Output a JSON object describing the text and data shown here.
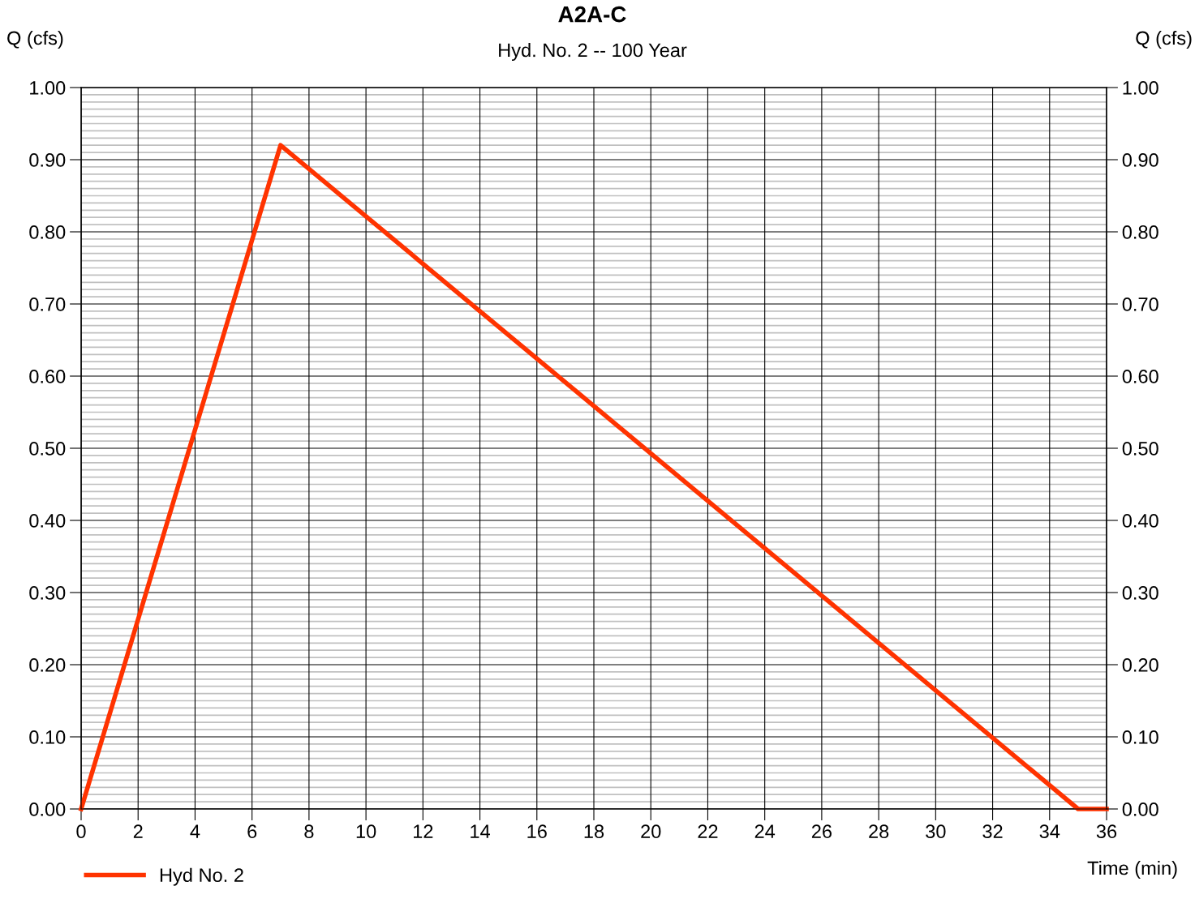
{
  "chart_data": {
    "type": "line",
    "title": "A2A-C",
    "subtitle": "Hyd. No. 2 -- 100 Year",
    "xlabel": "Time (min)",
    "ylabel": "Q (cfs)",
    "y2label": "Q (cfs)",
    "x": [
      0,
      7,
      35,
      36
    ],
    "series": [
      {
        "name": "Hyd No. 2",
        "color": "#ff3300",
        "values": [
          0,
          0.92,
          0,
          0
        ]
      }
    ],
    "xlim": [
      0,
      36
    ],
    "xticks": [
      0,
      2,
      4,
      6,
      8,
      10,
      12,
      14,
      16,
      18,
      20,
      22,
      24,
      26,
      28,
      30,
      32,
      34,
      36
    ],
    "ylim": [
      0,
      1
    ],
    "yticks": [
      {
        "value": 0,
        "label": "0.00"
      },
      {
        "value": 0.1,
        "label": "0.10"
      },
      {
        "value": 0.2,
        "label": "0.20"
      },
      {
        "value": 0.3,
        "label": "0.30"
      },
      {
        "value": 0.4,
        "label": "0.40"
      },
      {
        "value": 0.5,
        "label": "0.50"
      },
      {
        "value": 0.6,
        "label": "0.60"
      },
      {
        "value": 0.7,
        "label": "0.70"
      },
      {
        "value": 0.8,
        "label": "0.80"
      },
      {
        "value": 0.9,
        "label": "0.90"
      },
      {
        "value": 1,
        "label": "1.00"
      }
    ],
    "y2lim": [
      0,
      1
    ],
    "y2ticks": [
      {
        "value": 0,
        "label": "0.00"
      },
      {
        "value": 0.1,
        "label": "0.10"
      },
      {
        "value": 0.2,
        "label": "0.20"
      },
      {
        "value": 0.3,
        "label": "0.30"
      },
      {
        "value": 0.4,
        "label": "0.40"
      },
      {
        "value": 0.5,
        "label": "0.50"
      },
      {
        "value": 0.6,
        "label": "0.60"
      },
      {
        "value": 0.7,
        "label": "0.70"
      },
      {
        "value": 0.8,
        "label": "0.80"
      },
      {
        "value": 0.9,
        "label": "0.90"
      },
      {
        "value": 1,
        "label": "1.00"
      }
    ],
    "grid": true,
    "legend": "bottom left",
    "marker": "none",
    "line_style": "solid"
  }
}
